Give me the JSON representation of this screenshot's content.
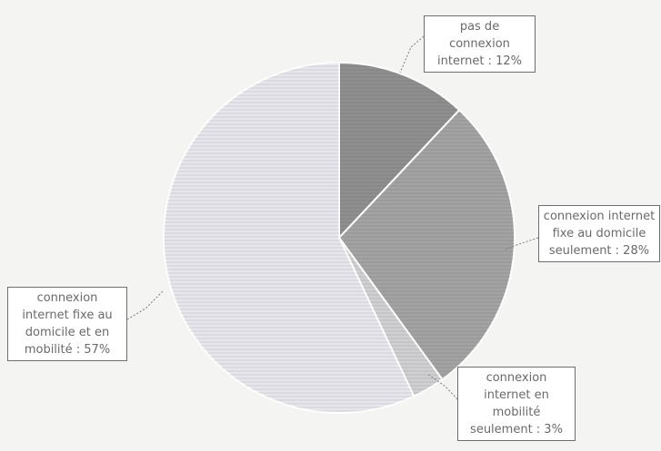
{
  "chart_data": {
    "type": "pie",
    "title": "",
    "slices": [
      {
        "label": "pas de connexion internet : 12%",
        "value": 12,
        "color": "#8f8f8f"
      },
      {
        "label": "connexion internet fixe au domicile seulement : 28%",
        "value": 28,
        "color": "#a3a3a3"
      },
      {
        "label": "connexion internet en mobilité seulement : 3%",
        "value": 3,
        "color": "#d0d0d3"
      },
      {
        "label": "connexion internet fixe au domicile et en mobilité : 57%",
        "value": 57,
        "color": "#e6e6ec"
      }
    ],
    "start_angle": "12 o'clock, clockwise",
    "legend": "none (data callout labels)"
  }
}
